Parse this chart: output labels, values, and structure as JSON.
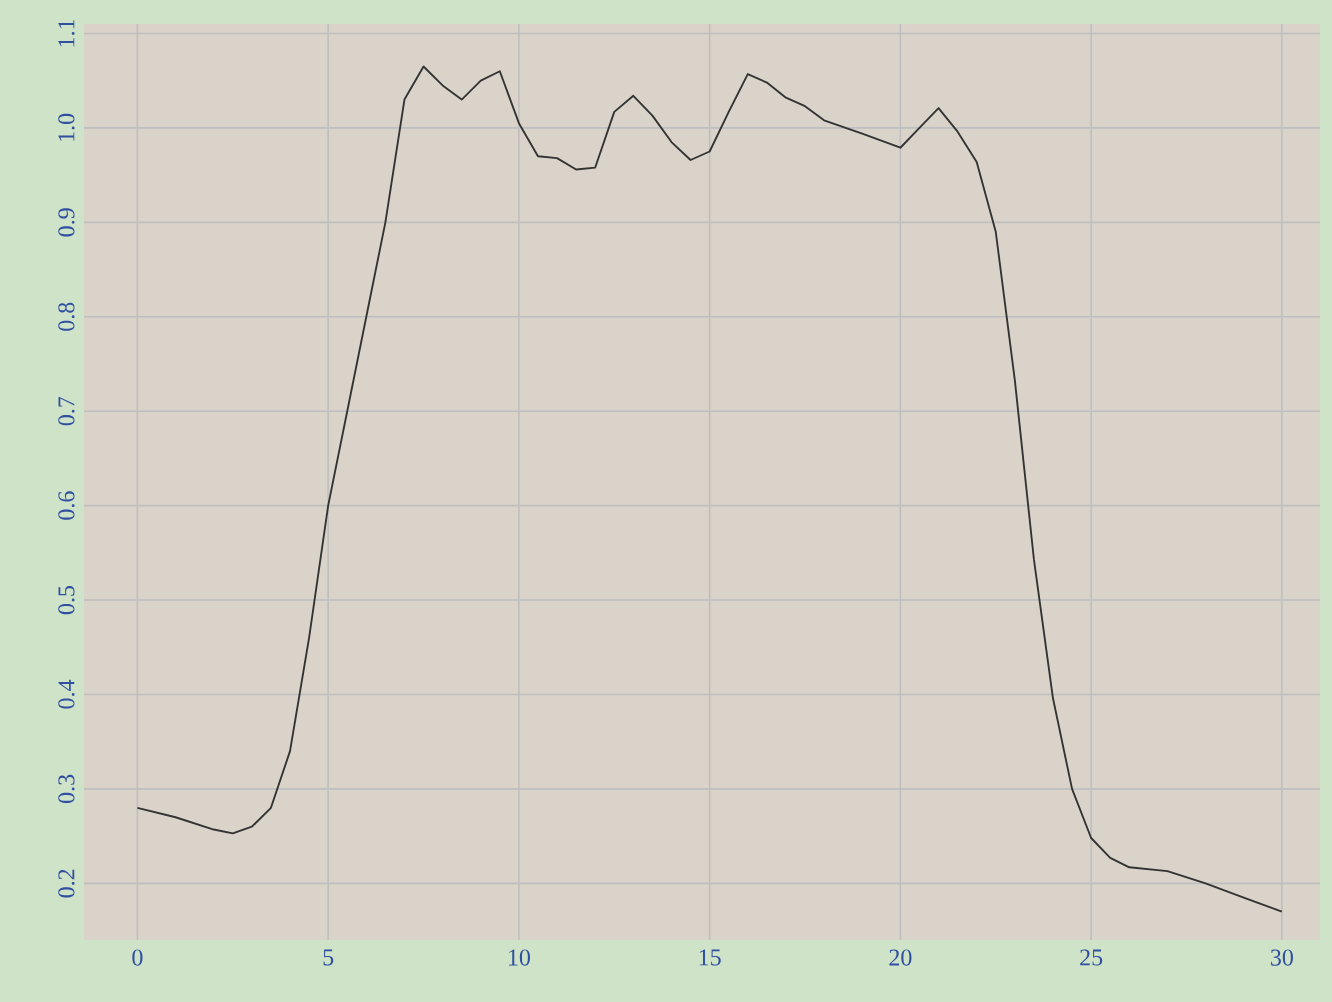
{
  "chart_data": {
    "type": "line",
    "color": "#333333",
    "x": [
      0,
      1,
      2,
      2.5,
      3,
      3.5,
      4,
      4.5,
      5,
      5.5,
      6,
      6.5,
      7,
      7.5,
      8,
      8.5,
      9,
      9.5,
      10,
      10.5,
      11,
      11.5,
      12,
      12.5,
      13,
      13.5,
      14,
      14.5,
      15,
      15.5,
      16,
      16.5,
      17,
      17.5,
      18,
      19,
      20,
      20.5,
      21,
      21.5,
      22,
      22.5,
      23,
      23.5,
      24,
      24.5,
      25,
      25.5,
      26,
      27,
      28,
      29,
      30
    ],
    "values": [
      0.28,
      0.27,
      0.257,
      0.253,
      0.26,
      0.28,
      0.34,
      0.46,
      0.6,
      0.7,
      0.8,
      0.9,
      1.03,
      1.065,
      1.045,
      1.03,
      1.05,
      1.06,
      1.005,
      0.97,
      0.968,
      0.956,
      0.958,
      1.017,
      1.034,
      1.013,
      0.985,
      0.966,
      0.975,
      1.017,
      1.057,
      1.048,
      1.032,
      1.023,
      1.008,
      0.994,
      0.979,
      1.0,
      1.021,
      0.996,
      0.964,
      0.89,
      0.733,
      0.543,
      0.396,
      0.3,
      0.248,
      0.227,
      0.217,
      0.213,
      0.2,
      0.185,
      0.17
    ],
    "xlim": [
      -1.4,
      31
    ],
    "ylim": [
      0.14,
      1.11
    ],
    "xticks": [
      0,
      5,
      10,
      15,
      20,
      25,
      30
    ],
    "yticks": [
      0.2,
      0.3,
      0.4,
      0.5,
      0.6,
      0.7,
      0.8,
      0.9,
      {
        "value": 1,
        "label": "1.0"
      },
      1.1
    ],
    "grid": true,
    "marker": "none",
    "line_style": "solid"
  }
}
